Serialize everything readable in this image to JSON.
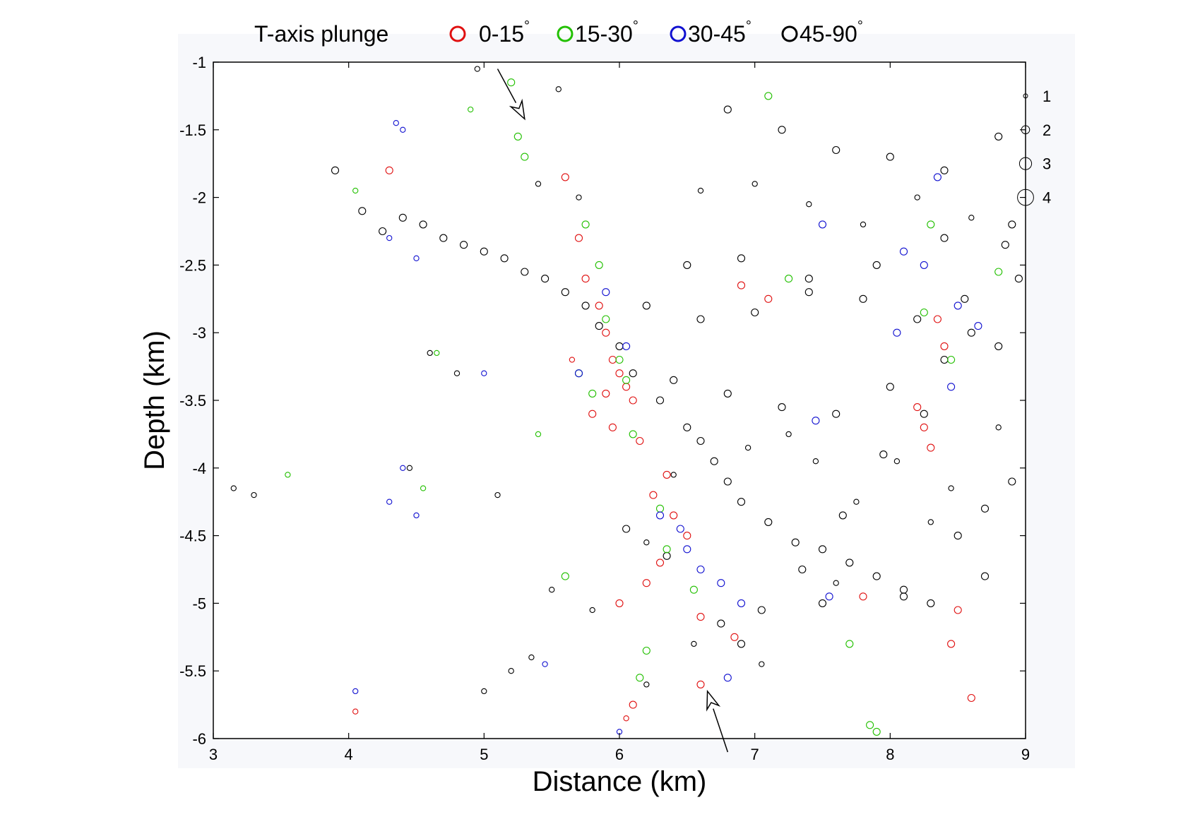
{
  "chart_data": {
    "type": "scatter",
    "title": "",
    "xlabel": "Distance (km)",
    "ylabel": "Depth (km)",
    "xlim": [
      3,
      9
    ],
    "ylim": [
      -6,
      -1
    ],
    "x_ticks": [
      "3",
      "4",
      "5",
      "6",
      "7",
      "8",
      "9"
    ],
    "y_ticks": [
      "-1",
      "-1.5",
      "-2",
      "-2.5",
      "-3",
      "-3.5",
      "-4",
      "-4.5",
      "-5",
      "-5.5",
      "-6"
    ],
    "grid": false,
    "legend_placement": "top",
    "legend": {
      "title": "T-axis plunge",
      "unit": "°",
      "entries": [
        {
          "label": "0-15",
          "color": "#e01010"
        },
        {
          "label": "15-30",
          "color": "#22c000"
        },
        {
          "label": "30-45",
          "color": "#1010d0"
        },
        {
          "label": "45-90",
          "color": "#000000"
        }
      ]
    },
    "magnitude_scale": {
      "labels": [
        "1",
        "2",
        "3",
        "4"
      ],
      "depths": [
        -1.25,
        -1.5,
        -1.75,
        -2.0
      ]
    },
    "annotations": [
      {
        "type": "arrow",
        "from": [
          5.1,
          -1.05
        ],
        "to": [
          5.3,
          -1.42
        ]
      },
      {
        "type": "arrow",
        "from": [
          6.8,
          -6.1
        ],
        "to": [
          6.65,
          -5.65
        ]
      }
    ],
    "series": [
      {
        "color": "#000000",
        "x": [
          3.9,
          4.1,
          4.25,
          4.4,
          4.55,
          4.7,
          4.85,
          5.0,
          5.15,
          5.3,
          5.45,
          5.6,
          5.75,
          5.4,
          5.7,
          5.85,
          6.0,
          6.1,
          6.3,
          6.5,
          6.6,
          6.7,
          6.8,
          6.9,
          7.1,
          7.3,
          7.5,
          7.7,
          7.9,
          8.1,
          8.3,
          8.5,
          8.7,
          8.9,
          6.5,
          6.9,
          7.4,
          7.9,
          8.4,
          8.9,
          6.8,
          7.2,
          7.6,
          8.0,
          8.4,
          8.8,
          6.2,
          6.6,
          7.0,
          7.4,
          7.8,
          8.2,
          8.6,
          6.6,
          7.0,
          7.4,
          7.8,
          8.2,
          8.6,
          8.95,
          6.4,
          6.8,
          7.2,
          7.6,
          8.0,
          8.4,
          8.8,
          6.9,
          7.5,
          8.1,
          8.7,
          4.6,
          4.8,
          5.1,
          5.35,
          5.2,
          5.0,
          4.95,
          5.55,
          3.15,
          3.3,
          4.45,
          6.2,
          6.55,
          7.05,
          7.6,
          8.3,
          8.8,
          6.05,
          6.35,
          6.75,
          7.05,
          7.35,
          7.65,
          7.95,
          8.25,
          8.55,
          8.85,
          5.5,
          5.8,
          6.2,
          6.4,
          6.95,
          7.25,
          7.45,
          7.75,
          8.05,
          8.45
        ],
        "y": [
          -1.8,
          -2.1,
          -2.25,
          -2.15,
          -2.2,
          -2.3,
          -2.35,
          -2.4,
          -2.45,
          -2.55,
          -2.6,
          -2.7,
          -2.8,
          -1.9,
          -2.0,
          -2.95,
          -3.1,
          -3.3,
          -3.5,
          -3.7,
          -3.8,
          -3.95,
          -4.1,
          -4.25,
          -4.4,
          -4.55,
          -4.6,
          -4.7,
          -4.8,
          -4.9,
          -5.0,
          -4.5,
          -4.3,
          -4.1,
          -2.5,
          -2.45,
          -2.6,
          -2.5,
          -2.3,
          -2.2,
          -1.35,
          -1.5,
          -1.65,
          -1.7,
          -1.8,
          -1.55,
          -2.8,
          -2.9,
          -2.85,
          -2.7,
          -2.75,
          -2.9,
          -3.0,
          -1.95,
          -1.9,
          -2.05,
          -2.2,
          -2.0,
          -2.15,
          -2.6,
          -3.35,
          -3.45,
          -3.55,
          -3.6,
          -3.4,
          -3.2,
          -3.1,
          -5.3,
          -5.0,
          -4.95,
          -4.8,
          -3.15,
          -3.3,
          -4.2,
          -5.4,
          -5.5,
          -5.65,
          -1.05,
          -1.2,
          -4.15,
          -4.2,
          -4.0,
          -5.6,
          -5.3,
          -5.45,
          -4.85,
          -4.4,
          -3.7,
          -4.45,
          -4.65,
          -5.15,
          -5.05,
          -4.75,
          -4.35,
          -3.9,
          -3.6,
          -2.75,
          -2.35,
          -4.9,
          -5.05,
          -4.55,
          -4.05,
          -3.85,
          -3.75,
          -3.95,
          -4.25,
          -3.95,
          -4.15
        ],
        "sizes": [
          2,
          2,
          2,
          2,
          2,
          2,
          2,
          2,
          2,
          2,
          2,
          2,
          2,
          1,
          1,
          2,
          2,
          2,
          2,
          2,
          2,
          2,
          2,
          2,
          2,
          2,
          2,
          2,
          2,
          2,
          2,
          2,
          2,
          2,
          2,
          2,
          2,
          2,
          2,
          2,
          2,
          2,
          2,
          2,
          2,
          2,
          2,
          2,
          2,
          2,
          2,
          2,
          2,
          1,
          1,
          1,
          1,
          1,
          1,
          2,
          2,
          2,
          2,
          2,
          2,
          2,
          2,
          2,
          2,
          2,
          2,
          1,
          1,
          1,
          1,
          1,
          1,
          1,
          1,
          1,
          1,
          1,
          1,
          1,
          1,
          1,
          1,
          1,
          2,
          2,
          2,
          2,
          2,
          2,
          2,
          2,
          2,
          2,
          1,
          1,
          1,
          1,
          1,
          1,
          1,
          1,
          1,
          1
        ]
      },
      {
        "color": "#e01010",
        "x": [
          4.3,
          5.6,
          5.7,
          5.75,
          5.85,
          5.9,
          5.95,
          6.0,
          6.05,
          6.1,
          5.8,
          5.95,
          6.15,
          5.65,
          6.25,
          6.4,
          6.5,
          6.3,
          6.2,
          6.0,
          6.6,
          6.85,
          6.1,
          8.2,
          8.25,
          8.3,
          8.35,
          8.4,
          8.5,
          8.45,
          8.6,
          6.9,
          7.1,
          4.05,
          6.05,
          5.9,
          6.35,
          6.6,
          7.8
        ],
        "y": [
          -1.8,
          -1.85,
          -2.3,
          -2.6,
          -2.8,
          -3.0,
          -3.2,
          -3.3,
          -3.4,
          -3.5,
          -3.6,
          -3.7,
          -3.8,
          -3.2,
          -4.2,
          -4.35,
          -4.5,
          -4.7,
          -4.85,
          -5.0,
          -5.1,
          -5.25,
          -5.75,
          -3.55,
          -3.7,
          -3.85,
          -2.9,
          -3.1,
          -5.05,
          -5.3,
          -5.7,
          -2.65,
          -2.75,
          -5.8,
          -5.85,
          -3.45,
          -4.05,
          -5.6,
          -4.95
        ],
        "sizes": [
          2,
          2,
          2,
          2,
          2,
          2,
          2,
          2,
          2,
          2,
          2,
          2,
          2,
          1,
          2,
          2,
          2,
          2,
          2,
          2,
          2,
          2,
          2,
          2,
          2,
          2,
          2,
          2,
          2,
          2,
          2,
          2,
          2,
          1,
          1,
          2,
          2,
          2,
          2
        ]
      },
      {
        "color": "#22c000",
        "x": [
          4.05,
          4.9,
          5.3,
          5.75,
          5.85,
          5.9,
          6.0,
          6.05,
          5.8,
          5.7,
          6.1,
          6.3,
          5.6,
          5.4,
          4.65,
          3.55,
          4.55,
          6.35,
          6.55,
          6.15,
          7.1,
          7.25,
          7.85,
          8.3,
          8.45,
          8.8,
          7.7,
          5.2,
          5.25,
          6.2,
          7.9,
          8.25
        ],
        "y": [
          -1.95,
          -1.35,
          -1.7,
          -2.2,
          -2.5,
          -2.9,
          -3.2,
          -3.35,
          -3.45,
          -3.3,
          -3.75,
          -4.3,
          -4.8,
          -3.75,
          -3.15,
          -4.05,
          -4.15,
          -4.6,
          -4.9,
          -5.55,
          -1.25,
          -2.6,
          -5.9,
          -2.2,
          -3.2,
          -2.55,
          -5.3,
          -1.15,
          -1.55,
          -5.35,
          -5.95,
          -2.85
        ],
        "sizes": [
          1,
          1,
          2,
          2,
          2,
          2,
          2,
          2,
          2,
          2,
          2,
          2,
          2,
          1,
          1,
          1,
          1,
          2,
          2,
          2,
          2,
          2,
          2,
          2,
          2,
          2,
          2,
          2,
          2,
          2,
          2,
          2
        ]
      },
      {
        "color": "#1010d0",
        "x": [
          4.35,
          4.4,
          4.3,
          4.5,
          5.9,
          6.05,
          5.7,
          6.3,
          6.45,
          6.5,
          6.6,
          6.75,
          6.9,
          7.5,
          8.1,
          8.25,
          8.5,
          8.65,
          8.35,
          5.0,
          4.4,
          4.5,
          4.3,
          4.05,
          5.45,
          6.0,
          6.8,
          7.45,
          7.55,
          8.05,
          8.45
        ],
        "y": [
          -1.45,
          -1.5,
          -2.3,
          -2.45,
          -2.7,
          -3.1,
          -3.3,
          -4.35,
          -4.45,
          -4.6,
          -4.75,
          -4.85,
          -5.0,
          -2.2,
          -2.4,
          -2.5,
          -2.8,
          -2.95,
          -1.85,
          -3.3,
          -4.0,
          -4.35,
          -4.25,
          -5.65,
          -5.45,
          -5.95,
          -5.55,
          -3.65,
          -4.95,
          -3.0,
          -3.4
        ],
        "sizes": [
          1,
          1,
          1,
          1,
          2,
          2,
          2,
          2,
          2,
          2,
          2,
          2,
          2,
          2,
          2,
          2,
          2,
          2,
          2,
          1,
          1,
          1,
          1,
          1,
          1,
          1,
          2,
          2,
          2,
          2,
          2
        ]
      }
    ]
  }
}
